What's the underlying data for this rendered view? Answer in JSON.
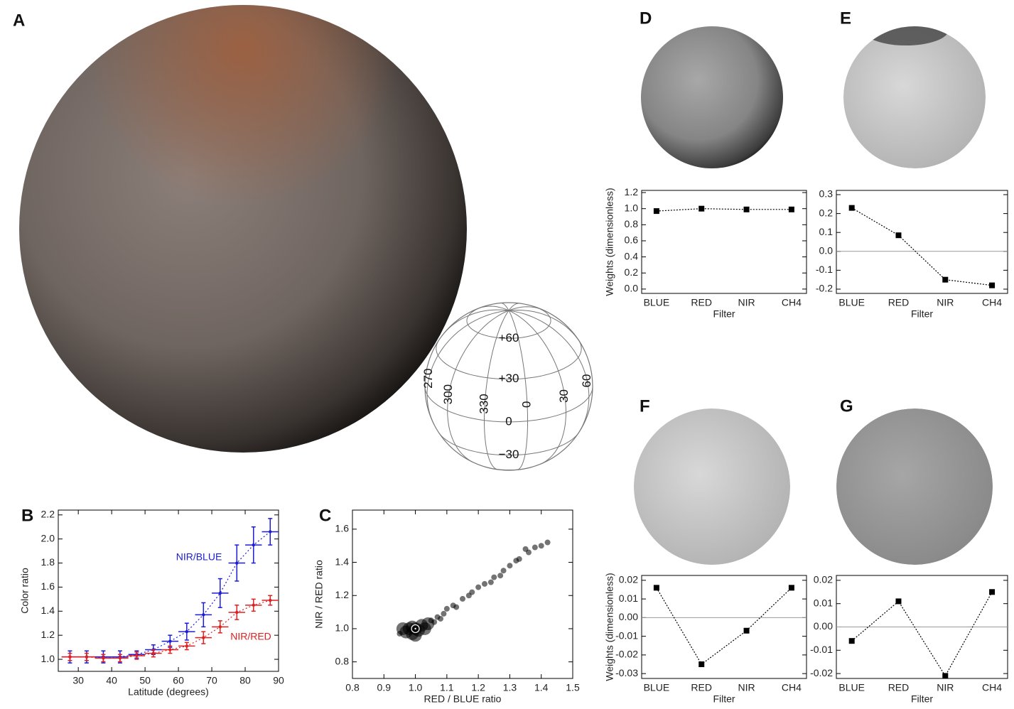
{
  "panels": [
    "A",
    "B",
    "C",
    "D",
    "E",
    "F",
    "G"
  ],
  "globe": {
    "latitudes": [
      {
        "value": 60,
        "label": "+60"
      },
      {
        "value": 30,
        "label": "+30"
      },
      0,
      {
        "value": -30,
        "label": "−30"
      }
    ],
    "longitudes": [
      270,
      300,
      330,
      0,
      30,
      60
    ]
  },
  "chart_data": [
    {
      "type": "line",
      "xlabel": "Latitude (degrees)",
      "ylabel": "Color ratio",
      "x": [
        27.5,
        32.5,
        37.5,
        42.5,
        47.5,
        52.5,
        57.5,
        62.5,
        67.5,
        72.5,
        77.5,
        82.5,
        87.5
      ],
      "x_error": 2.5,
      "series": [
        {
          "name": "NIR/BLUE",
          "color": "#1c1cd6",
          "values": [
            1.02,
            1.02,
            1.02,
            1.02,
            1.04,
            1.08,
            1.15,
            1.23,
            1.37,
            1.55,
            1.8,
            1.95,
            2.06
          ],
          "errors": [
            0.05,
            0.05,
            0.05,
            0.05,
            0.03,
            0.04,
            0.05,
            0.07,
            0.1,
            0.12,
            0.15,
            0.15,
            0.11
          ]
        },
        {
          "name": "NIR/RED",
          "color": "#e02020",
          "values": [
            1.02,
            1.02,
            1.01,
            1.01,
            1.03,
            1.05,
            1.08,
            1.11,
            1.18,
            1.27,
            1.39,
            1.45,
            1.49
          ],
          "errors": [
            0.03,
            0.03,
            0.03,
            0.03,
            0.03,
            0.03,
            0.03,
            0.03,
            0.05,
            0.05,
            0.06,
            0.05,
            0.04
          ]
        }
      ],
      "xlim": [
        24,
        90
      ],
      "xticks": [
        30,
        40,
        50,
        60,
        70,
        80,
        90
      ],
      "ylim": [
        0.9,
        2.24
      ],
      "yticks": [
        {
          "value": 1,
          "label": "1.0"
        },
        1.2,
        1.4,
        1.6,
        1.8,
        {
          "value": 2,
          "label": "2.0"
        },
        2.2
      ]
    },
    {
      "type": "scatter",
      "xlabel": "RED / BLUE ratio",
      "ylabel": "NIR / RED ratio",
      "x": [
        0.97,
        0.98,
        0.99,
        1.0,
        1.01,
        1.02,
        1.03,
        0.99,
        1.0,
        1.04,
        1.05,
        1.07,
        1.09,
        1.1,
        1.12,
        1.15,
        1.18,
        1.2,
        1.22,
        1.25,
        1.28,
        1.3,
        1.33,
        1.36,
        1.38,
        1.4,
        1.42,
        1.35,
        1.27,
        1.17,
        1.08,
        0.95,
        0.96,
        1.06,
        1.13,
        1.24,
        1.32
      ],
      "y": [
        0.98,
        1.0,
        0.97,
        1.0,
        0.99,
        1.02,
        1.0,
        1.01,
        0.96,
        1.03,
        1.05,
        1.07,
        1.09,
        1.12,
        1.14,
        1.18,
        1.22,
        1.25,
        1.27,
        1.31,
        1.35,
        1.38,
        1.42,
        1.46,
        1.49,
        1.5,
        1.52,
        1.48,
        1.32,
        1.2,
        1.06,
        0.97,
        1.0,
        1.04,
        1.13,
        1.28,
        1.41
      ],
      "center": {
        "x": 1.0,
        "y": 1.0
      },
      "xlim": [
        0.8,
        1.5
      ],
      "xticks": [
        0.8,
        0.9,
        {
          "value": 1,
          "label": "1.0"
        },
        1.1,
        1.2,
        1.3,
        1.4,
        1.5
      ],
      "ylim": [
        0.7,
        1.715
      ],
      "yticks": [
        0.8,
        {
          "value": 1,
          "label": "1.0"
        },
        1.2,
        1.4,
        1.6
      ]
    },
    {
      "type": "line",
      "xlabel": "Filter",
      "ylabel": "Weights (dimensionless)",
      "categories": [
        "BLUE",
        "RED",
        "NIR",
        "CH4"
      ],
      "values": [
        0.97,
        1.0,
        0.99,
        0.99
      ],
      "color": "#000000",
      "ylim": [
        -0.054,
        1.227
      ],
      "yticks": [
        {
          "value": 0,
          "label": "0.0"
        },
        0.2,
        0.4,
        0.6,
        0.8,
        {
          "value": 1,
          "label": "1.0"
        },
        1.2
      ]
    },
    {
      "type": "line",
      "xlabel": "Filter",
      "categories": [
        "BLUE",
        "RED",
        "NIR",
        "CH4"
      ],
      "values": [
        0.23,
        0.085,
        -0.15,
        -0.18
      ],
      "color": "#000000",
      "zero_line": true,
      "ylim": [
        -0.2226,
        0.3226
      ],
      "yticks": [
        -0.2,
        -0.1,
        {
          "value": 0,
          "label": "0.0"
        },
        0.1,
        0.2,
        0.3
      ]
    },
    {
      "type": "line",
      "xlabel": "Filter",
      "ylabel": "Weights (dimensionless)",
      "categories": [
        "BLUE",
        "RED",
        "NIR",
        "CH4"
      ],
      "values": [
        0.016,
        -0.025,
        -0.007,
        0.016
      ],
      "color": "#000000",
      "zero_line": true,
      "ylim": [
        -0.0326,
        0.0226
      ],
      "yticks": [
        -0.03,
        -0.02,
        -0.01,
        {
          "value": 0,
          "label": "0.00"
        },
        0.01,
        0.02
      ]
    },
    {
      "type": "line",
      "xlabel": "Filter",
      "categories": [
        "BLUE",
        "RED",
        "NIR",
        "CH4"
      ],
      "values": [
        -0.006,
        0.011,
        -0.021,
        0.015
      ],
      "color": "#000000",
      "zero_line": true,
      "ylim": [
        -0.0221,
        0.0221
      ],
      "yticks": [
        -0.02,
        -0.01,
        {
          "value": 0,
          "label": "0.00"
        },
        0.01,
        0.02
      ]
    }
  ]
}
